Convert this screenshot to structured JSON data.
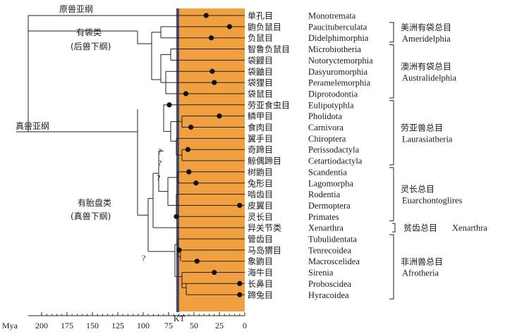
{
  "axis": {
    "label": "Mya",
    "ticks": [
      "200",
      "175",
      "150",
      "125",
      "100",
      "75",
      "50",
      "25",
      "0"
    ],
    "kt_label": "KT",
    "kt_mya": 66
  },
  "colors": {
    "band": "#f0a040",
    "kt_line": "#4a4a6a",
    "line": "#222222"
  },
  "groups": {
    "prototheria": "原兽亚纲",
    "marsupials": "有袋类",
    "marsupials_sub": "(后兽下纲)",
    "theria": "真兽亚纲",
    "placentals": "有胎盘类",
    "placentals_sub": "(真兽下纲)"
  },
  "taxa": [
    {
      "cn": "单孔目",
      "en": "Monotremata",
      "node_mya": 38
    },
    {
      "cn": "鼩负鼠目",
      "en": "Paucituberculata",
      "node_mya": 15
    },
    {
      "cn": "负鼠目",
      "en": "Didelphimorphia",
      "node_mya": 33
    },
    {
      "cn": "智鲁负鼠目",
      "en": "Microbiotheria",
      "node_mya": null
    },
    {
      "cn": "袋鼹目",
      "en": "Notoryctemorphia",
      "node_mya": null
    },
    {
      "cn": "袋鼬目",
      "en": "Dasyuromorphia",
      "node_mya": 32
    },
    {
      "cn": "袋狸目",
      "en": "Peramelemorphia",
      "node_mya": 30
    },
    {
      "cn": "袋鼠目",
      "en": "Diprotodontia",
      "node_mya": 58
    },
    {
      "cn": "劳亚食虫目",
      "en": "Eulipotyphla",
      "node_mya": null
    },
    {
      "cn": "鳞甲目",
      "en": "Pholidota",
      "node_mya": 25
    },
    {
      "cn": "食肉目",
      "en": "Carnivora",
      "node_mya": 53
    },
    {
      "cn": "翼手目",
      "en": "Chiroptera",
      "node_mya": null
    },
    {
      "cn": "奇蹄目",
      "en": "Perissodactyla",
      "node_mya": 56
    },
    {
      "cn": "鲸偶蹄目",
      "en": "Cetartiodactyla",
      "node_mya": null
    },
    {
      "cn": "树鼩目",
      "en": "Scandentia",
      "node_mya": 55
    },
    {
      "cn": "兔形目",
      "en": "Lagomorpha",
      "node_mya": 48
    },
    {
      "cn": "啮齿目",
      "en": "Rodentia",
      "node_mya": null
    },
    {
      "cn": "皮翼目",
      "en": "Dermoptera",
      "node_mya": 5
    },
    {
      "cn": "灵长目",
      "en": "Primates",
      "node_mya": null
    },
    {
      "cn": "异关节类",
      "en": "Xenarthra",
      "node_mya": null
    },
    {
      "cn": "管齿目",
      "en": "Tubulidentata",
      "node_mya": null
    },
    {
      "cn": "马岛猬目",
      "en": "Tenrecoidea",
      "node_mya": null
    },
    {
      "cn": "象鼩目",
      "en": "Macroscelidea",
      "node_mya": 47
    },
    {
      "cn": "海牛目",
      "en": "Sirenia",
      "node_mya": 30
    },
    {
      "cn": "长鼻目",
      "en": "Proboscidea",
      "node_mya": 5
    },
    {
      "cn": "蹄兔目",
      "en": "Hyracoidea",
      "node_mya": 5
    }
  ],
  "superorders": [
    {
      "cn": "美洲有袋总目",
      "en": "Ameridelphia",
      "from": 1,
      "to": 2
    },
    {
      "cn": "澳洲有袋总目",
      "en": "Australidelphia",
      "from": 3,
      "to": 7
    },
    {
      "cn": "劳亚兽总目",
      "en": "Laurasiatheria",
      "from": 8,
      "to": 13
    },
    {
      "cn": "灵长总目",
      "en": "Euarchontoglires",
      "from": 14,
      "to": 18
    },
    {
      "cn": "贫齿总目",
      "en": "Xenarthra",
      "from": 19,
      "to": 19
    },
    {
      "cn": "非洲兽总目",
      "en": "Afrotheria",
      "from": 20,
      "to": 25
    }
  ],
  "question_mark": "?"
}
